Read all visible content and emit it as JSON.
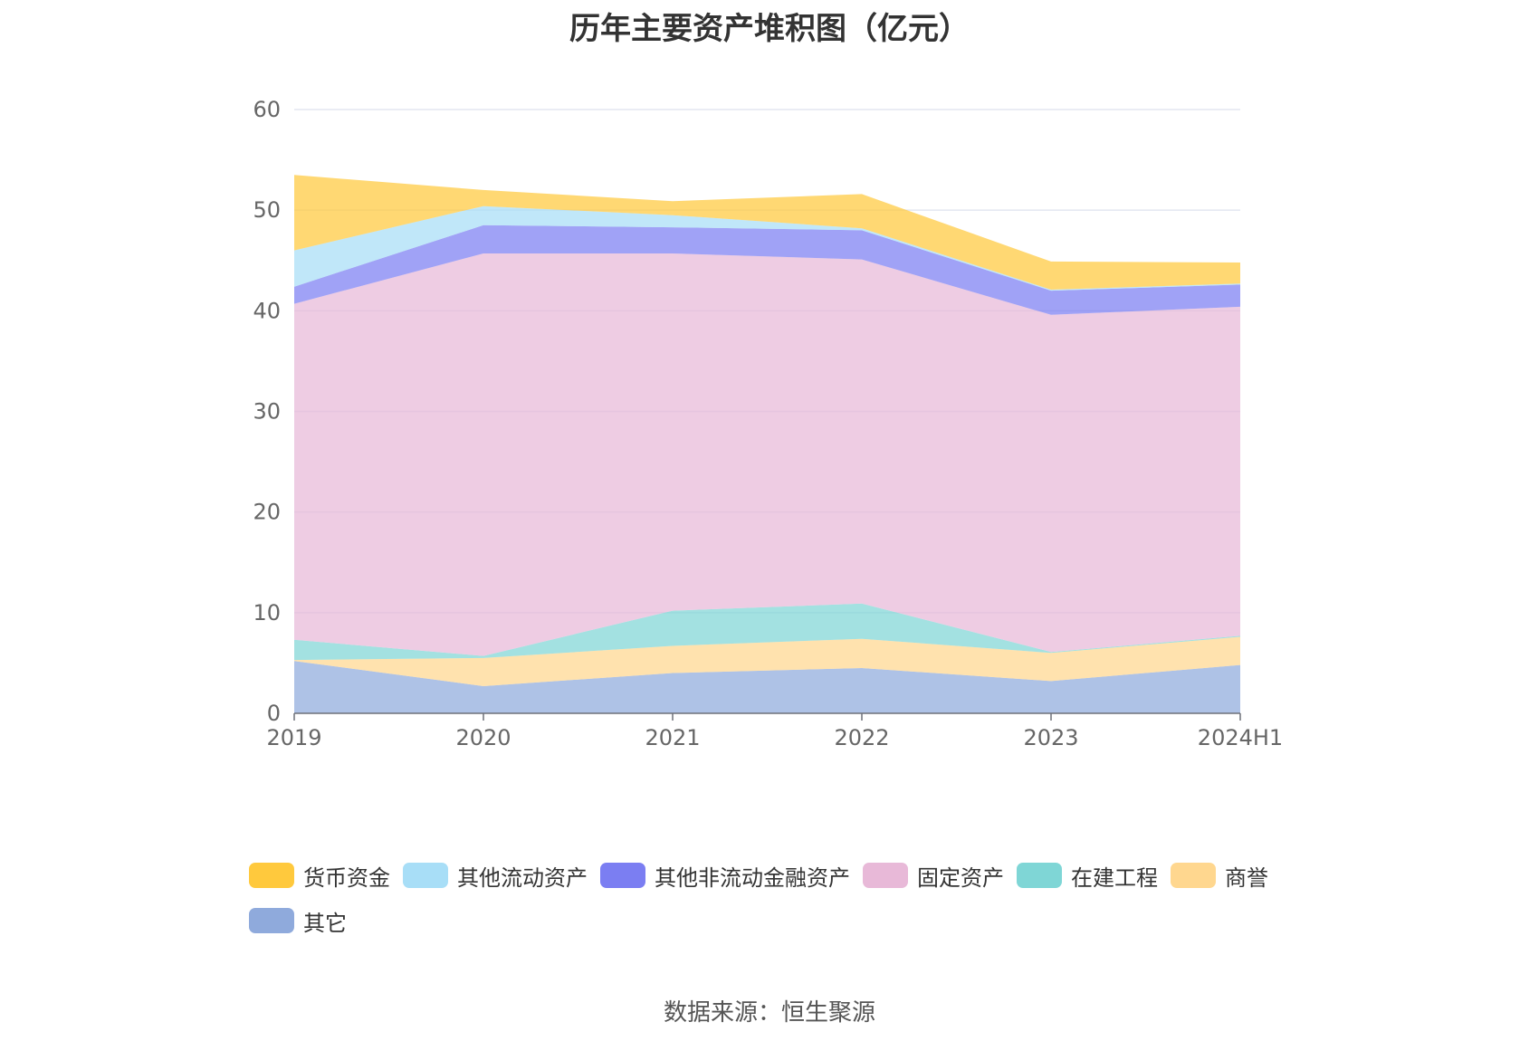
{
  "title": "历年主要资产堆积图（亿元）",
  "source_note": "数据来源：恒生聚源",
  "chart_data": {
    "type": "area",
    "stacked": true,
    "categories": [
      "2019",
      "2020",
      "2021",
      "2022",
      "2023",
      "2024H1"
    ],
    "ylim": [
      0,
      60
    ],
    "yticks": [
      0,
      10,
      20,
      30,
      40,
      50,
      60
    ],
    "grid": true,
    "legend_position": "bottom",
    "series": [
      {
        "name": "其它",
        "color": "#8faadc",
        "values": [
          5.2,
          2.7,
          4.0,
          4.5,
          3.2,
          4.8
        ]
      },
      {
        "name": "商誉",
        "color": "#ffd78f",
        "values": [
          0.1,
          2.8,
          2.7,
          2.9,
          2.8,
          2.8
        ]
      },
      {
        "name": "在建工程",
        "color": "#7fd6d6",
        "values": [
          2.0,
          0.2,
          3.5,
          3.5,
          0.1,
          0.1
        ]
      },
      {
        "name": "固定资产",
        "color": "#e8b9d8",
        "values": [
          33.4,
          40.0,
          35.5,
          34.2,
          33.5,
          32.7
        ]
      },
      {
        "name": "其他非流动金融资产",
        "color": "#7b7ef2",
        "values": [
          1.7,
          2.8,
          2.6,
          2.9,
          2.4,
          2.2
        ]
      },
      {
        "name": "其他流动资产",
        "color": "#a8def7",
        "values": [
          3.6,
          1.9,
          1.2,
          0.2,
          0.1,
          0.1
        ]
      },
      {
        "name": "货币资金",
        "color": "#ffc93d",
        "values": [
          7.5,
          1.6,
          1.4,
          3.4,
          2.8,
          2.1
        ]
      }
    ],
    "legend_order": [
      "货币资金",
      "其他流动资产",
      "其他非流动金融资产",
      "固定资产",
      "在建工程",
      "商誉",
      "其它"
    ]
  }
}
